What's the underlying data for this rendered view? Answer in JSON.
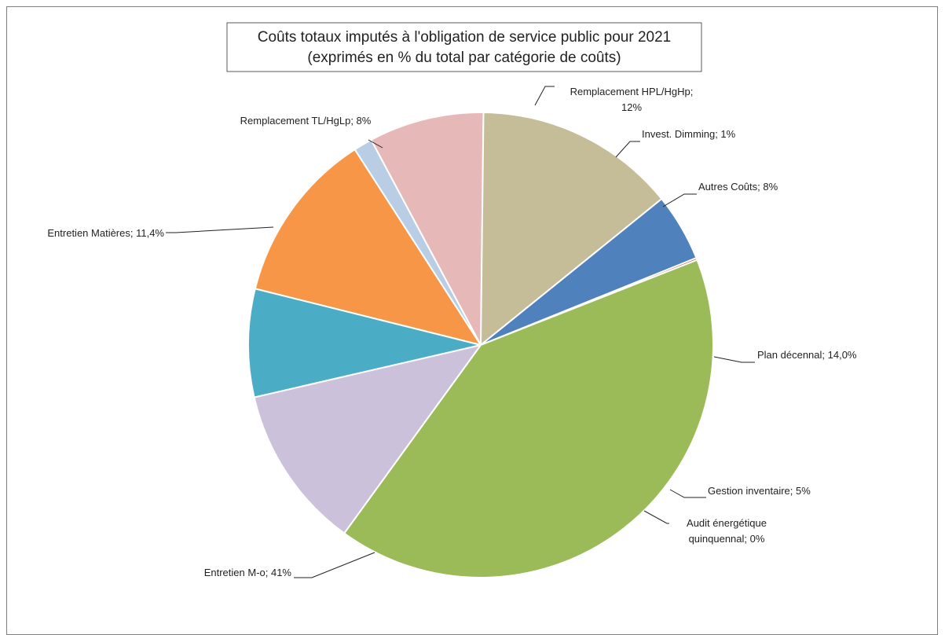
{
  "chart_data": {
    "type": "pie",
    "title": "Coûts totaux imputés à l'obligation de service public pour 2021",
    "subtitle": "(exprimés en % du total par catégorie de coûts)",
    "slices": [
      {
        "name": "Remplacement HPL/HgHp",
        "value": 12,
        "label_lines": [
          "Remplacement HPL/HgHp;",
          "12%"
        ],
        "color": "#F79646"
      },
      {
        "name": "Invest. Dimming",
        "value": 1.3,
        "label_lines": [
          "Invest. Dimming; 1%"
        ],
        "color": "#B9CDE5"
      },
      {
        "name": "Autres Coûts",
        "value": 8,
        "label_lines": [
          "Autres Coûts; 8%"
        ],
        "color": "#E6B9B8"
      },
      {
        "name": "Plan décennal",
        "value": 14.0,
        "label_lines": [
          "Plan décennal; 14,0%"
        ],
        "color": "#C4BD97"
      },
      {
        "name": "Gestion inventaire",
        "value": 4.7,
        "label_lines": [
          "Gestion inventaire; 5%"
        ],
        "color": "#4F81BD"
      },
      {
        "name": "Audit énergétique quinquennal",
        "value": 0.15,
        "label_lines": [
          "Audit énergétique",
          "quinquennal; 0%"
        ],
        "color": "#C0504D"
      },
      {
        "name": "Entretien M-o",
        "value": 40.95,
        "label_lines": [
          "Entretien M-o; 41%"
        ],
        "color": "#9BBB59"
      },
      {
        "name": "Entretien Matières",
        "value": 11.4,
        "label_lines": [
          "Entretien Matières; 11,4%"
        ],
        "color": "#CCC1DA"
      },
      {
        "name": "Remplacement TL/HgLp",
        "value": 7.5,
        "label_lines": [
          "Remplacement TL/HgLp; 8%"
        ],
        "color": "#4BACC6"
      }
    ]
  }
}
